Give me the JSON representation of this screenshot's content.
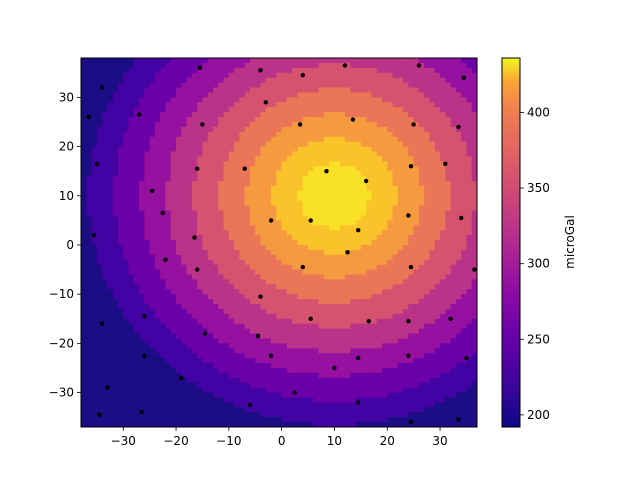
{
  "chart_data": {
    "type": "contour",
    "title": "",
    "xlabel": "",
    "ylabel": "",
    "xlim": [
      -38,
      37
    ],
    "ylim": [
      -37,
      38
    ],
    "x_ticks": [
      -30,
      -20,
      -10,
      0,
      10,
      20,
      30
    ],
    "x_tick_labels": [
      "−30",
      "−20",
      "−10",
      "0",
      "10",
      "20",
      "30"
    ],
    "y_ticks": [
      -30,
      -20,
      -10,
      0,
      10,
      20,
      30
    ],
    "y_tick_labels": [
      "−30",
      "−20",
      "−10",
      "0",
      "10",
      "20",
      "30"
    ],
    "colormap": "plasma",
    "colorbar": {
      "label": "microGal",
      "range": [
        192,
        436
      ],
      "ticks": [
        200,
        250,
        300,
        350,
        400
      ],
      "tick_labels": [
        "200",
        "250",
        "300",
        "350",
        "400"
      ]
    },
    "levels": [
      {
        "min": 192,
        "max": 216,
        "color": "#1c0d84"
      },
      {
        "min": 216,
        "max": 240,
        "color": "#4202a4"
      },
      {
        "min": 240,
        "max": 264,
        "color": "#6b00a8"
      },
      {
        "min": 264,
        "max": 288,
        "color": "#9611a0"
      },
      {
        "min": 288,
        "max": 312,
        "color": "#ba3388"
      },
      {
        "min": 312,
        "max": 336,
        "color": "#d5536f"
      },
      {
        "min": 336,
        "max": 360,
        "color": "#ea7657"
      },
      {
        "min": 360,
        "max": 384,
        "color": "#f69a40"
      },
      {
        "min": 384,
        "max": 408,
        "color": "#fbc32b"
      },
      {
        "min": 408,
        "max": 436,
        "color": "#f9e126"
      }
    ],
    "field": {
      "peak_x": 10,
      "peak_y": 10,
      "center_value": 440,
      "falloff_per_unit": 4.8,
      "min_value": 192
    },
    "stations": [
      [
        -34,
        32
      ],
      [
        -36.5,
        26
      ],
      [
        -27,
        26.5
      ],
      [
        -15.5,
        36
      ],
      [
        -4,
        35.5
      ],
      [
        4,
        34.5
      ],
      [
        12,
        36.5
      ],
      [
        26,
        36.5
      ],
      [
        34.5,
        34
      ],
      [
        -15,
        24.5
      ],
      [
        -3,
        29
      ],
      [
        3.5,
        24.5
      ],
      [
        13.5,
        25.5
      ],
      [
        25,
        24.5
      ],
      [
        33.5,
        24
      ],
      [
        -35,
        16.5
      ],
      [
        -24.5,
        11
      ],
      [
        -16,
        15.5
      ],
      [
        -7,
        15.5
      ],
      [
        8.5,
        15
      ],
      [
        16,
        13
      ],
      [
        24.5,
        16
      ],
      [
        31,
        16.5
      ],
      [
        -22.5,
        6.5
      ],
      [
        -2,
        5
      ],
      [
        5.5,
        5
      ],
      [
        14.5,
        3
      ],
      [
        24,
        6
      ],
      [
        34,
        5.5
      ],
      [
        -35.5,
        2
      ],
      [
        -16.5,
        1.5
      ],
      [
        12.5,
        -1.5
      ],
      [
        -22,
        -3
      ],
      [
        -16,
        -5
      ],
      [
        4,
        -4.5
      ],
      [
        24.5,
        -4.5
      ],
      [
        36.5,
        -5
      ],
      [
        -26,
        -14.5
      ],
      [
        -4,
        -10.5
      ],
      [
        5.5,
        -15
      ],
      [
        16.5,
        -15.5
      ],
      [
        24,
        -15.5
      ],
      [
        32,
        -15
      ],
      [
        -34,
        -16
      ],
      [
        -14.5,
        -18
      ],
      [
        -4.5,
        -18.5
      ],
      [
        -2,
        -22.5
      ],
      [
        10,
        -25
      ],
      [
        14.5,
        -23
      ],
      [
        24,
        -22.5
      ],
      [
        35,
        -23
      ],
      [
        -33,
        -29
      ],
      [
        -19,
        -27
      ],
      [
        -6,
        -32.5
      ],
      [
        2.5,
        -30
      ],
      [
        14.5,
        -32
      ],
      [
        -26,
        -22.5
      ],
      [
        -34.5,
        -34.5
      ],
      [
        -26.5,
        -34
      ],
      [
        24.5,
        -36
      ],
      [
        33.5,
        -35.5
      ]
    ]
  }
}
